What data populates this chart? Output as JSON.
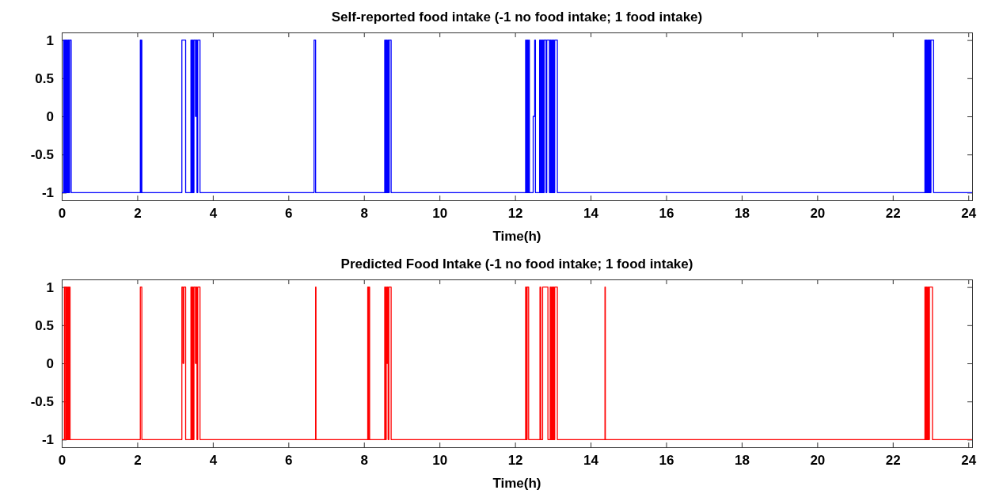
{
  "chart_data": [
    {
      "type": "step",
      "title": "Self-reported food intake (-1 no food intake; 1 food intake)",
      "xlabel": "Time(h)",
      "xlim": [
        0,
        24.1
      ],
      "ylim": [
        -1.1,
        1.1
      ],
      "xticks": [
        0,
        2,
        4,
        6,
        8,
        10,
        12,
        14,
        16,
        18,
        20,
        22,
        24
      ],
      "yticks": [
        -1,
        -0.5,
        0,
        0.5,
        1
      ],
      "grid": false,
      "x": [
        0,
        0.05,
        0.07,
        0.09,
        0.11,
        0.13,
        0.15,
        0.17,
        0.19,
        0.21,
        0.25,
        2.08,
        2.1,
        2.105,
        2.12,
        3.18,
        3.28,
        3.42,
        3.44,
        3.46,
        3.48,
        3.5,
        3.54,
        3.56,
        3.58,
        3.6,
        3.66,
        6.68,
        6.72,
        8.55,
        8.57,
        8.59,
        8.61,
        8.63,
        8.65,
        8.67,
        8.72,
        12.28,
        12.3,
        12.32,
        12.34,
        12.36,
        12.38,
        12.48,
        12.52,
        12.54,
        12.65,
        12.67,
        12.69,
        12.71,
        12.73,
        12.75,
        12.77,
        12.82,
        12.84,
        12.91,
        12.93,
        12.95,
        12.97,
        12.99,
        13.01,
        13.03,
        13.05,
        13.12,
        22.85,
        22.87,
        22.89,
        22.91,
        22.93,
        22.95,
        22.97,
        22.99,
        23.01,
        23.08,
        24.1
      ],
      "series": [
        {
          "color": "#0000ff",
          "values": [
            -1,
            1,
            -1,
            1,
            -1,
            1,
            -1,
            1,
            -1,
            1,
            -1,
            1,
            -1,
            1,
            -1,
            1,
            -1,
            1,
            -1,
            1,
            -1,
            1,
            0,
            1,
            -1,
            1,
            -1,
            1,
            -1,
            1,
            -1,
            1,
            -1,
            1,
            -1,
            1,
            -1,
            1,
            -1,
            1,
            -1,
            1,
            -1,
            0,
            1,
            -1,
            1,
            -1,
            1,
            -1,
            1,
            -1,
            1,
            -1,
            1,
            -1,
            1,
            -1,
            1,
            -1,
            1,
            -1,
            1,
            -1,
            1,
            -1,
            1,
            -1,
            1,
            -1,
            1,
            -1,
            1,
            -1,
            -1
          ]
        }
      ]
    },
    {
      "type": "step",
      "title": "Predicted Food Intake (-1 no food intake; 1 food intake)",
      "xlabel": "Time(h)",
      "xlim": [
        0,
        24.1
      ],
      "ylim": [
        -1.1,
        1.1
      ],
      "xticks": [
        0,
        2,
        4,
        6,
        8,
        10,
        12,
        14,
        16,
        18,
        20,
        22,
        24
      ],
      "yticks": [
        -1,
        -0.5,
        0,
        0.5,
        1
      ],
      "grid": false,
      "x": [
        0,
        0.07,
        0.1,
        0.12,
        0.14,
        0.16,
        0.18,
        0.2,
        0.22,
        0.25,
        2.08,
        2.12,
        3.18,
        3.21,
        3.23,
        3.28,
        3.42,
        3.44,
        3.46,
        3.48,
        3.5,
        3.54,
        3.56,
        3.58,
        3.6,
        3.66,
        6.72,
        6.73,
        8.1,
        8.12,
        8.13,
        8.15,
        8.55,
        8.57,
        8.59,
        8.6,
        8.62,
        8.64,
        8.66,
        8.72,
        12.28,
        12.3,
        12.32,
        12.36,
        12.66,
        12.68,
        12.73,
        12.87,
        12.93,
        12.95,
        12.97,
        12.99,
        13.01,
        13.03,
        13.05,
        13.12,
        14.38,
        14.39,
        22.85,
        22.87,
        22.89,
        22.91,
        22.93,
        22.95,
        22.97,
        23.05,
        24.1
      ],
      "series": [
        {
          "color": "#ff0000",
          "values": [
            -1,
            1,
            -1,
            1,
            -1,
            1,
            -1,
            1,
            -1,
            -1,
            1,
            -1,
            1,
            0,
            1,
            -1,
            1,
            -1,
            1,
            -1,
            1,
            0,
            1,
            -1,
            1,
            -1,
            1,
            -1,
            1,
            -1,
            1,
            -1,
            1,
            -1,
            1,
            0,
            1,
            -1,
            1,
            -1,
            1,
            -1,
            1,
            -1,
            1,
            -1,
            1,
            -1,
            1,
            -1,
            1,
            -1,
            1,
            -1,
            1,
            -1,
            1,
            -1,
            1,
            -1,
            1,
            -1,
            1,
            -1,
            1,
            -1,
            -1
          ]
        }
      ]
    }
  ]
}
